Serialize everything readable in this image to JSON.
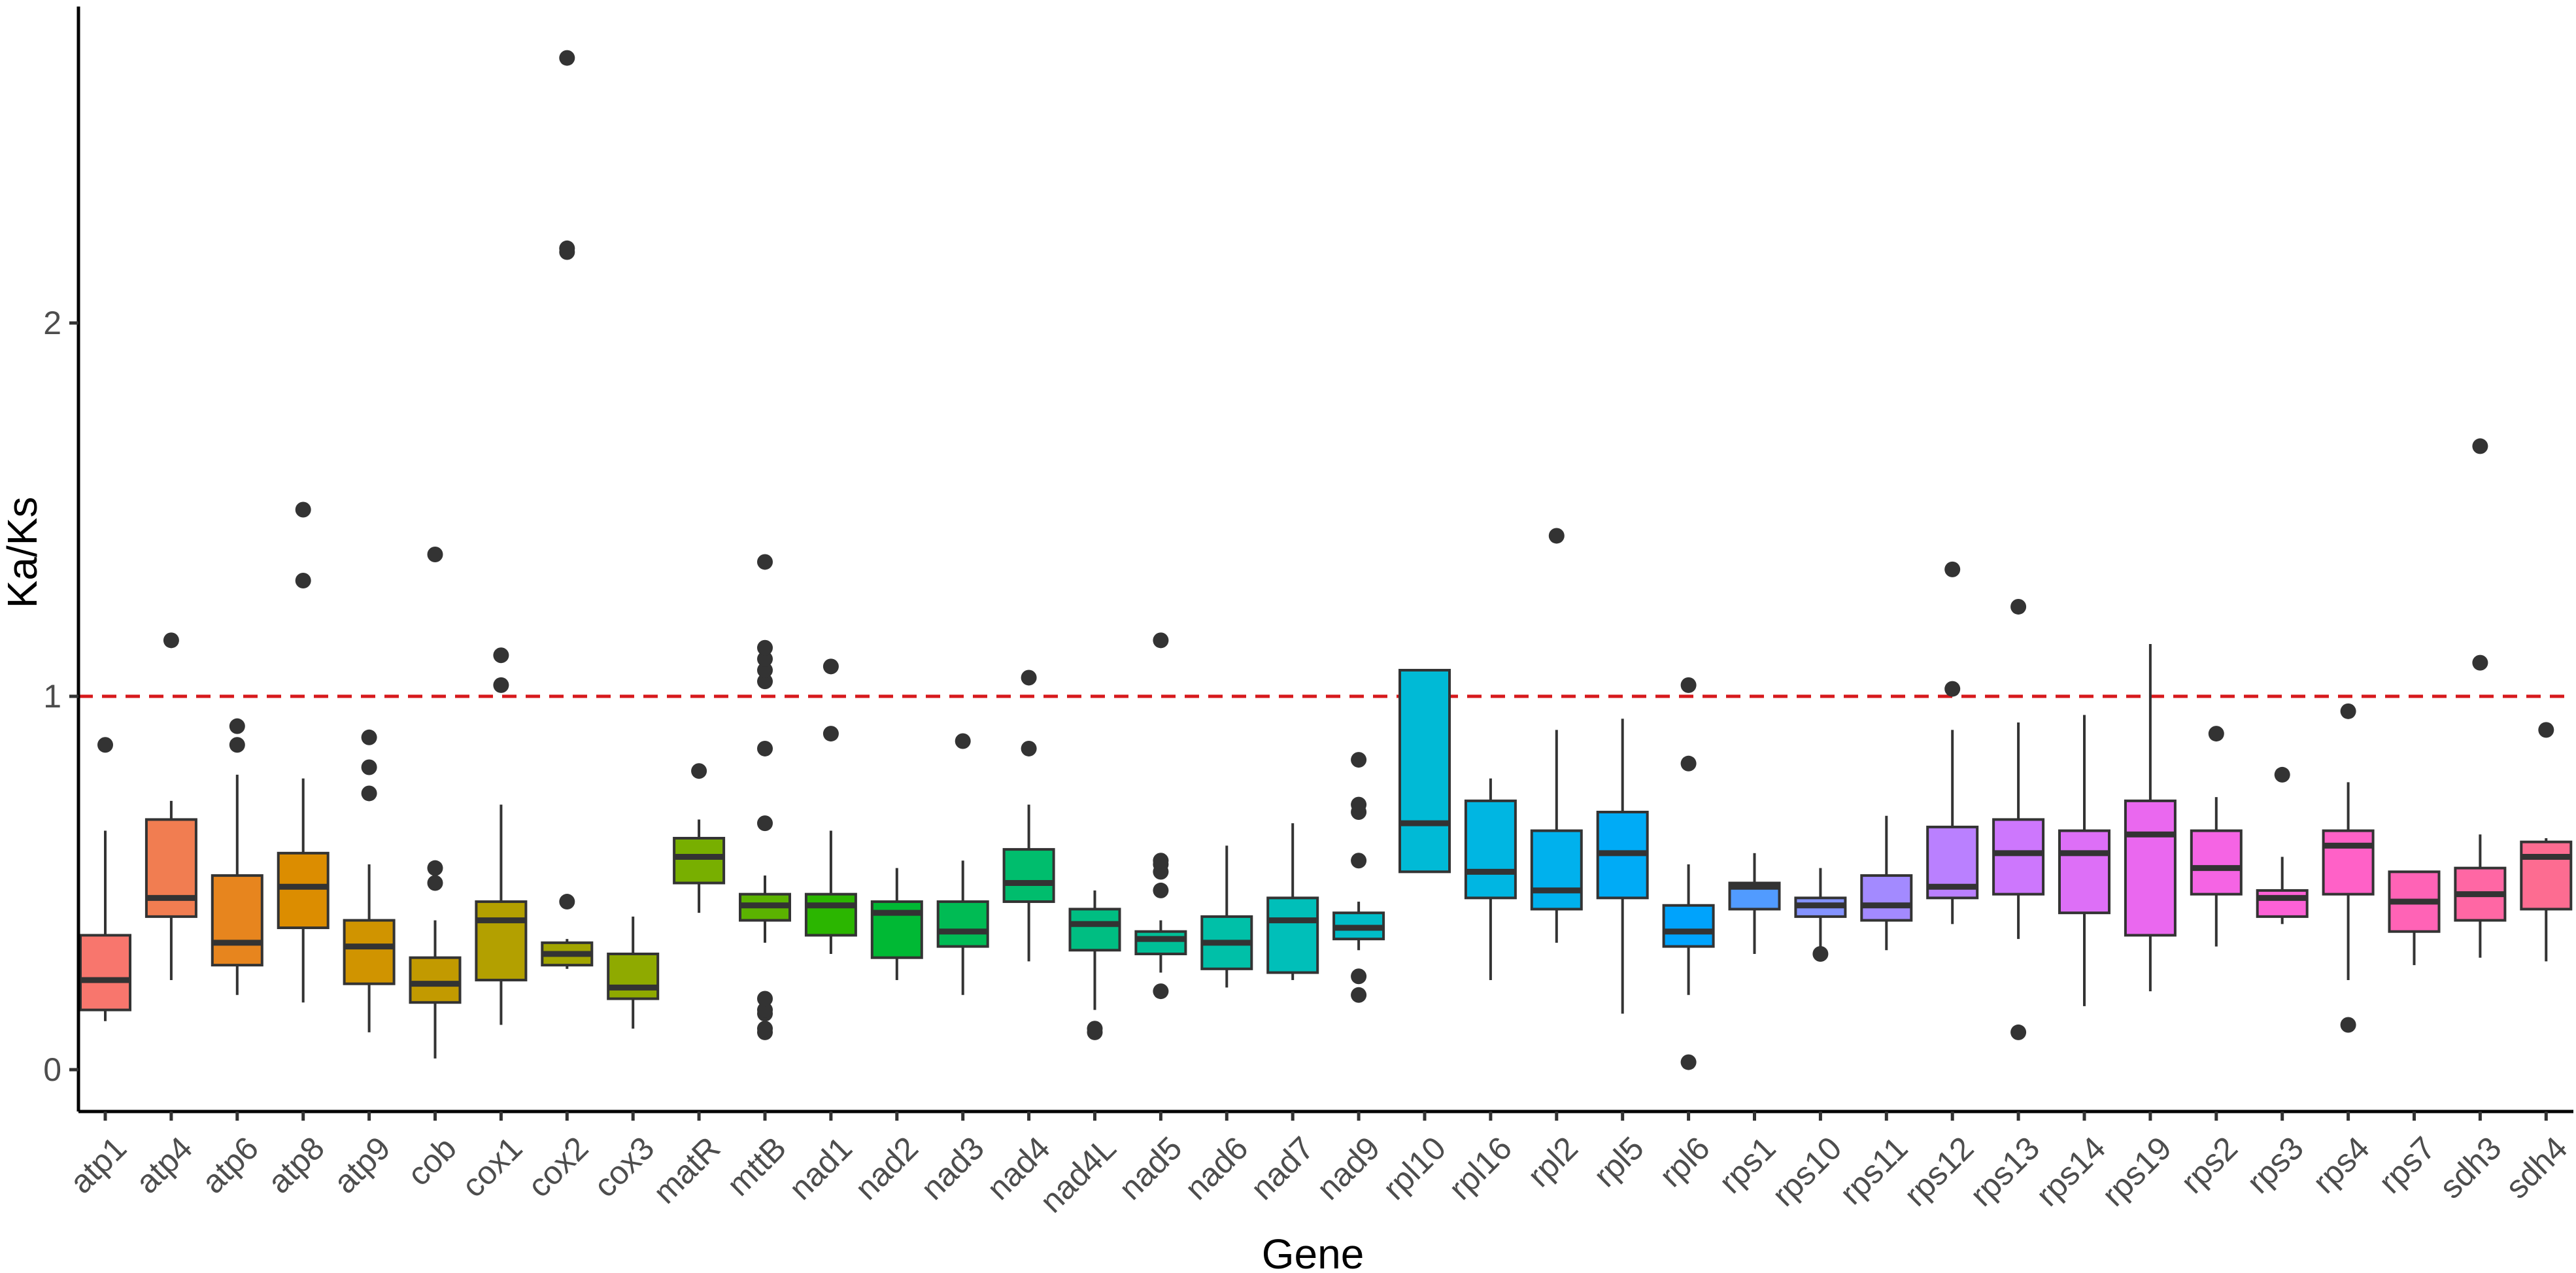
{
  "chart_data": {
    "type": "boxplot",
    "xlabel": "Gene",
    "ylabel": "Ka/Ks",
    "ylim": [
      -0.1,
      2.85
    ],
    "yticks": [
      0,
      1,
      2
    ],
    "yticklabels": [
      "0",
      "1",
      "2"
    ],
    "reference_line": {
      "y": 1,
      "color": "#d7191c",
      "style": "dashed"
    },
    "legend": "none",
    "grid": false,
    "categories": [
      "atp1",
      "atp4",
      "atp6",
      "atp8",
      "atp9",
      "cob",
      "cox1",
      "cox2",
      "cox3",
      "matR",
      "mttB",
      "nad1",
      "nad2",
      "nad3",
      "nad4",
      "nad4L",
      "nad5",
      "nad6",
      "nad7",
      "nad9",
      "rpl10",
      "rpl16",
      "rpl2",
      "rpl5",
      "rpl6",
      "rps1",
      "rps10",
      "rps11",
      "rps12",
      "rps13",
      "rps14",
      "rps19",
      "rps2",
      "rps3",
      "rps4",
      "rps7",
      "sdh3",
      "sdh4"
    ],
    "series": [
      {
        "name": "atp1",
        "color": "#F8766D",
        "lower_whisker": 0.13,
        "q1": 0.16,
        "median": 0.24,
        "q3": 0.36,
        "upper_whisker": 0.64,
        "outliers": [
          0.87
        ]
      },
      {
        "name": "atp4",
        "color": "#F17D51",
        "lower_whisker": 0.24,
        "q1": 0.41,
        "median": 0.46,
        "q3": 0.67,
        "upper_whisker": 0.72,
        "outliers": [
          1.15
        ]
      },
      {
        "name": "atp6",
        "color": "#E7851E",
        "lower_whisker": 0.2,
        "q1": 0.28,
        "median": 0.34,
        "q3": 0.52,
        "upper_whisker": 0.79,
        "outliers": [
          0.87,
          0.92
        ]
      },
      {
        "name": "atp8",
        "color": "#DC8D00",
        "lower_whisker": 0.18,
        "q1": 0.38,
        "median": 0.49,
        "q3": 0.58,
        "upper_whisker": 0.78,
        "outliers": [
          1.31,
          1.5
        ]
      },
      {
        "name": "atp9",
        "color": "#D09400",
        "lower_whisker": 0.1,
        "q1": 0.23,
        "median": 0.33,
        "q3": 0.4,
        "upper_whisker": 0.55,
        "outliers": [
          0.74,
          0.81,
          0.89
        ]
      },
      {
        "name": "cob",
        "color": "#C29A00",
        "lower_whisker": 0.03,
        "q1": 0.18,
        "median": 0.23,
        "q3": 0.3,
        "upper_whisker": 0.4,
        "outliers": [
          0.5,
          0.54,
          1.38
        ]
      },
      {
        "name": "cox1",
        "color": "#B3A000",
        "lower_whisker": 0.12,
        "q1": 0.24,
        "median": 0.4,
        "q3": 0.45,
        "upper_whisker": 0.71,
        "outliers": [
          1.03,
          1.11
        ]
      },
      {
        "name": "cox2",
        "color": "#A2A500",
        "lower_whisker": 0.27,
        "q1": 0.28,
        "median": 0.31,
        "q3": 0.34,
        "upper_whisker": 0.35,
        "outliers": [
          0.45,
          2.19,
          2.2,
          2.71
        ]
      },
      {
        "name": "cox3",
        "color": "#8FAA00",
        "lower_whisker": 0.11,
        "q1": 0.19,
        "median": 0.22,
        "q3": 0.31,
        "upper_whisker": 0.41,
        "outliers": []
      },
      {
        "name": "matR",
        "color": "#78AF00",
        "lower_whisker": 0.42,
        "q1": 0.5,
        "median": 0.57,
        "q3": 0.62,
        "upper_whisker": 0.67,
        "outliers": [
          0.8
        ]
      },
      {
        "name": "mttB",
        "color": "#5BB300",
        "lower_whisker": 0.34,
        "q1": 0.4,
        "median": 0.44,
        "q3": 0.47,
        "upper_whisker": 0.52,
        "outliers": [
          0.1,
          0.11,
          0.15,
          0.16,
          0.19,
          0.66,
          0.86,
          1.04,
          1.07,
          1.1,
          1.13,
          1.36
        ]
      },
      {
        "name": "nad1",
        "color": "#2BB600",
        "lower_whisker": 0.31,
        "q1": 0.36,
        "median": 0.44,
        "q3": 0.47,
        "upper_whisker": 0.64,
        "outliers": [
          0.9,
          1.08
        ]
      },
      {
        "name": "nad2",
        "color": "#00B934",
        "lower_whisker": 0.24,
        "q1": 0.3,
        "median": 0.42,
        "q3": 0.45,
        "upper_whisker": 0.54,
        "outliers": []
      },
      {
        "name": "nad3",
        "color": "#00BB54",
        "lower_whisker": 0.2,
        "q1": 0.33,
        "median": 0.37,
        "q3": 0.45,
        "upper_whisker": 0.56,
        "outliers": [
          0.88
        ]
      },
      {
        "name": "nad4",
        "color": "#00BD6D",
        "lower_whisker": 0.29,
        "q1": 0.45,
        "median": 0.5,
        "q3": 0.59,
        "upper_whisker": 0.71,
        "outliers": [
          0.86,
          1.05
        ]
      },
      {
        "name": "nad4L",
        "color": "#00BE82",
        "lower_whisker": 0.16,
        "q1": 0.32,
        "median": 0.39,
        "q3": 0.43,
        "upper_whisker": 0.48,
        "outliers": [
          0.1,
          0.11
        ]
      },
      {
        "name": "nad5",
        "color": "#00BF96",
        "lower_whisker": 0.26,
        "q1": 0.31,
        "median": 0.35,
        "q3": 0.37,
        "upper_whisker": 0.4,
        "outliers": [
          0.21,
          0.48,
          0.53,
          0.55,
          0.56,
          1.15
        ]
      },
      {
        "name": "nad6",
        "color": "#00C0A8",
        "lower_whisker": 0.22,
        "q1": 0.27,
        "median": 0.34,
        "q3": 0.41,
        "upper_whisker": 0.6,
        "outliers": []
      },
      {
        "name": "nad7",
        "color": "#00BFB9",
        "lower_whisker": 0.24,
        "q1": 0.26,
        "median": 0.4,
        "q3": 0.46,
        "upper_whisker": 0.66,
        "outliers": []
      },
      {
        "name": "nad9",
        "color": "#00BDC8",
        "lower_whisker": 0.32,
        "q1": 0.35,
        "median": 0.38,
        "q3": 0.42,
        "upper_whisker": 0.45,
        "outliers": [
          0.2,
          0.25,
          0.56,
          0.69,
          0.71,
          0.83
        ]
      },
      {
        "name": "rpl10",
        "color": "#00BAD6",
        "lower_whisker": 0.53,
        "q1": 0.53,
        "median": 0.66,
        "q3": 1.07,
        "upper_whisker": 1.07,
        "outliers": []
      },
      {
        "name": "rpl16",
        "color": "#00B6E2",
        "lower_whisker": 0.24,
        "q1": 0.46,
        "median": 0.53,
        "q3": 0.72,
        "upper_whisker": 0.78,
        "outliers": []
      },
      {
        "name": "rpl2",
        "color": "#00B1ED",
        "lower_whisker": 0.34,
        "q1": 0.43,
        "median": 0.48,
        "q3": 0.64,
        "upper_whisker": 0.91,
        "outliers": [
          1.43
        ]
      },
      {
        "name": "rpl5",
        "color": "#00ABF6",
        "lower_whisker": 0.15,
        "q1": 0.46,
        "median": 0.58,
        "q3": 0.69,
        "upper_whisker": 0.94,
        "outliers": []
      },
      {
        "name": "rpl6",
        "color": "#00A3FC",
        "lower_whisker": 0.2,
        "q1": 0.33,
        "median": 0.37,
        "q3": 0.44,
        "upper_whisker": 0.55,
        "outliers": [
          0.02,
          0.82,
          1.03
        ]
      },
      {
        "name": "rps1",
        "color": "#519BFF",
        "lower_whisker": 0.31,
        "q1": 0.43,
        "median": 0.49,
        "q3": 0.5,
        "upper_whisker": 0.58,
        "outliers": []
      },
      {
        "name": "rps10",
        "color": "#8493FF",
        "lower_whisker": 0.33,
        "q1": 0.41,
        "median": 0.44,
        "q3": 0.46,
        "upper_whisker": 0.54,
        "outliers": [
          0.31
        ]
      },
      {
        "name": "rps11",
        "color": "#A38AFF",
        "lower_whisker": 0.32,
        "q1": 0.4,
        "median": 0.44,
        "q3": 0.52,
        "upper_whisker": 0.68,
        "outliers": []
      },
      {
        "name": "rps12",
        "color": "#BA80FF",
        "lower_whisker": 0.39,
        "q1": 0.46,
        "median": 0.49,
        "q3": 0.65,
        "upper_whisker": 0.91,
        "outliers": [
          1.02,
          1.34
        ]
      },
      {
        "name": "rps13",
        "color": "#CD77FD",
        "lower_whisker": 0.35,
        "q1": 0.47,
        "median": 0.58,
        "q3": 0.67,
        "upper_whisker": 0.93,
        "outliers": [
          0.1,
          1.24
        ]
      },
      {
        "name": "rps14",
        "color": "#DD6FF7",
        "lower_whisker": 0.17,
        "q1": 0.42,
        "median": 0.58,
        "q3": 0.64,
        "upper_whisker": 0.95,
        "outliers": []
      },
      {
        "name": "rps19",
        "color": "#EA68EF",
        "lower_whisker": 0.21,
        "q1": 0.36,
        "median": 0.63,
        "q3": 0.72,
        "upper_whisker": 1.14,
        "outliers": []
      },
      {
        "name": "rps2",
        "color": "#F564E4",
        "lower_whisker": 0.33,
        "q1": 0.47,
        "median": 0.54,
        "q3": 0.64,
        "upper_whisker": 0.73,
        "outliers": [
          0.9
        ]
      },
      {
        "name": "rps3",
        "color": "#FC61D6",
        "lower_whisker": 0.39,
        "q1": 0.41,
        "median": 0.46,
        "q3": 0.48,
        "upper_whisker": 0.57,
        "outliers": [
          0.79
        ]
      },
      {
        "name": "rps4",
        "color": "#FF61C7",
        "lower_whisker": 0.24,
        "q1": 0.47,
        "median": 0.6,
        "q3": 0.64,
        "upper_whisker": 0.77,
        "outliers": [
          0.12,
          0.96
        ]
      },
      {
        "name": "rps7",
        "color": "#FF63B6",
        "lower_whisker": 0.28,
        "q1": 0.37,
        "median": 0.45,
        "q3": 0.53,
        "upper_whisker": 0.53,
        "outliers": []
      },
      {
        "name": "sdh3",
        "color": "#FF67A4",
        "lower_whisker": 0.3,
        "q1": 0.4,
        "median": 0.47,
        "q3": 0.54,
        "upper_whisker": 0.63,
        "outliers": [
          1.09,
          1.67
        ]
      },
      {
        "name": "sdh4",
        "color": "#FD6C91",
        "lower_whisker": 0.29,
        "q1": 0.43,
        "median": 0.57,
        "q3": 0.61,
        "upper_whisker": 0.62,
        "outliers": [
          0.91
        ]
      }
    ]
  }
}
